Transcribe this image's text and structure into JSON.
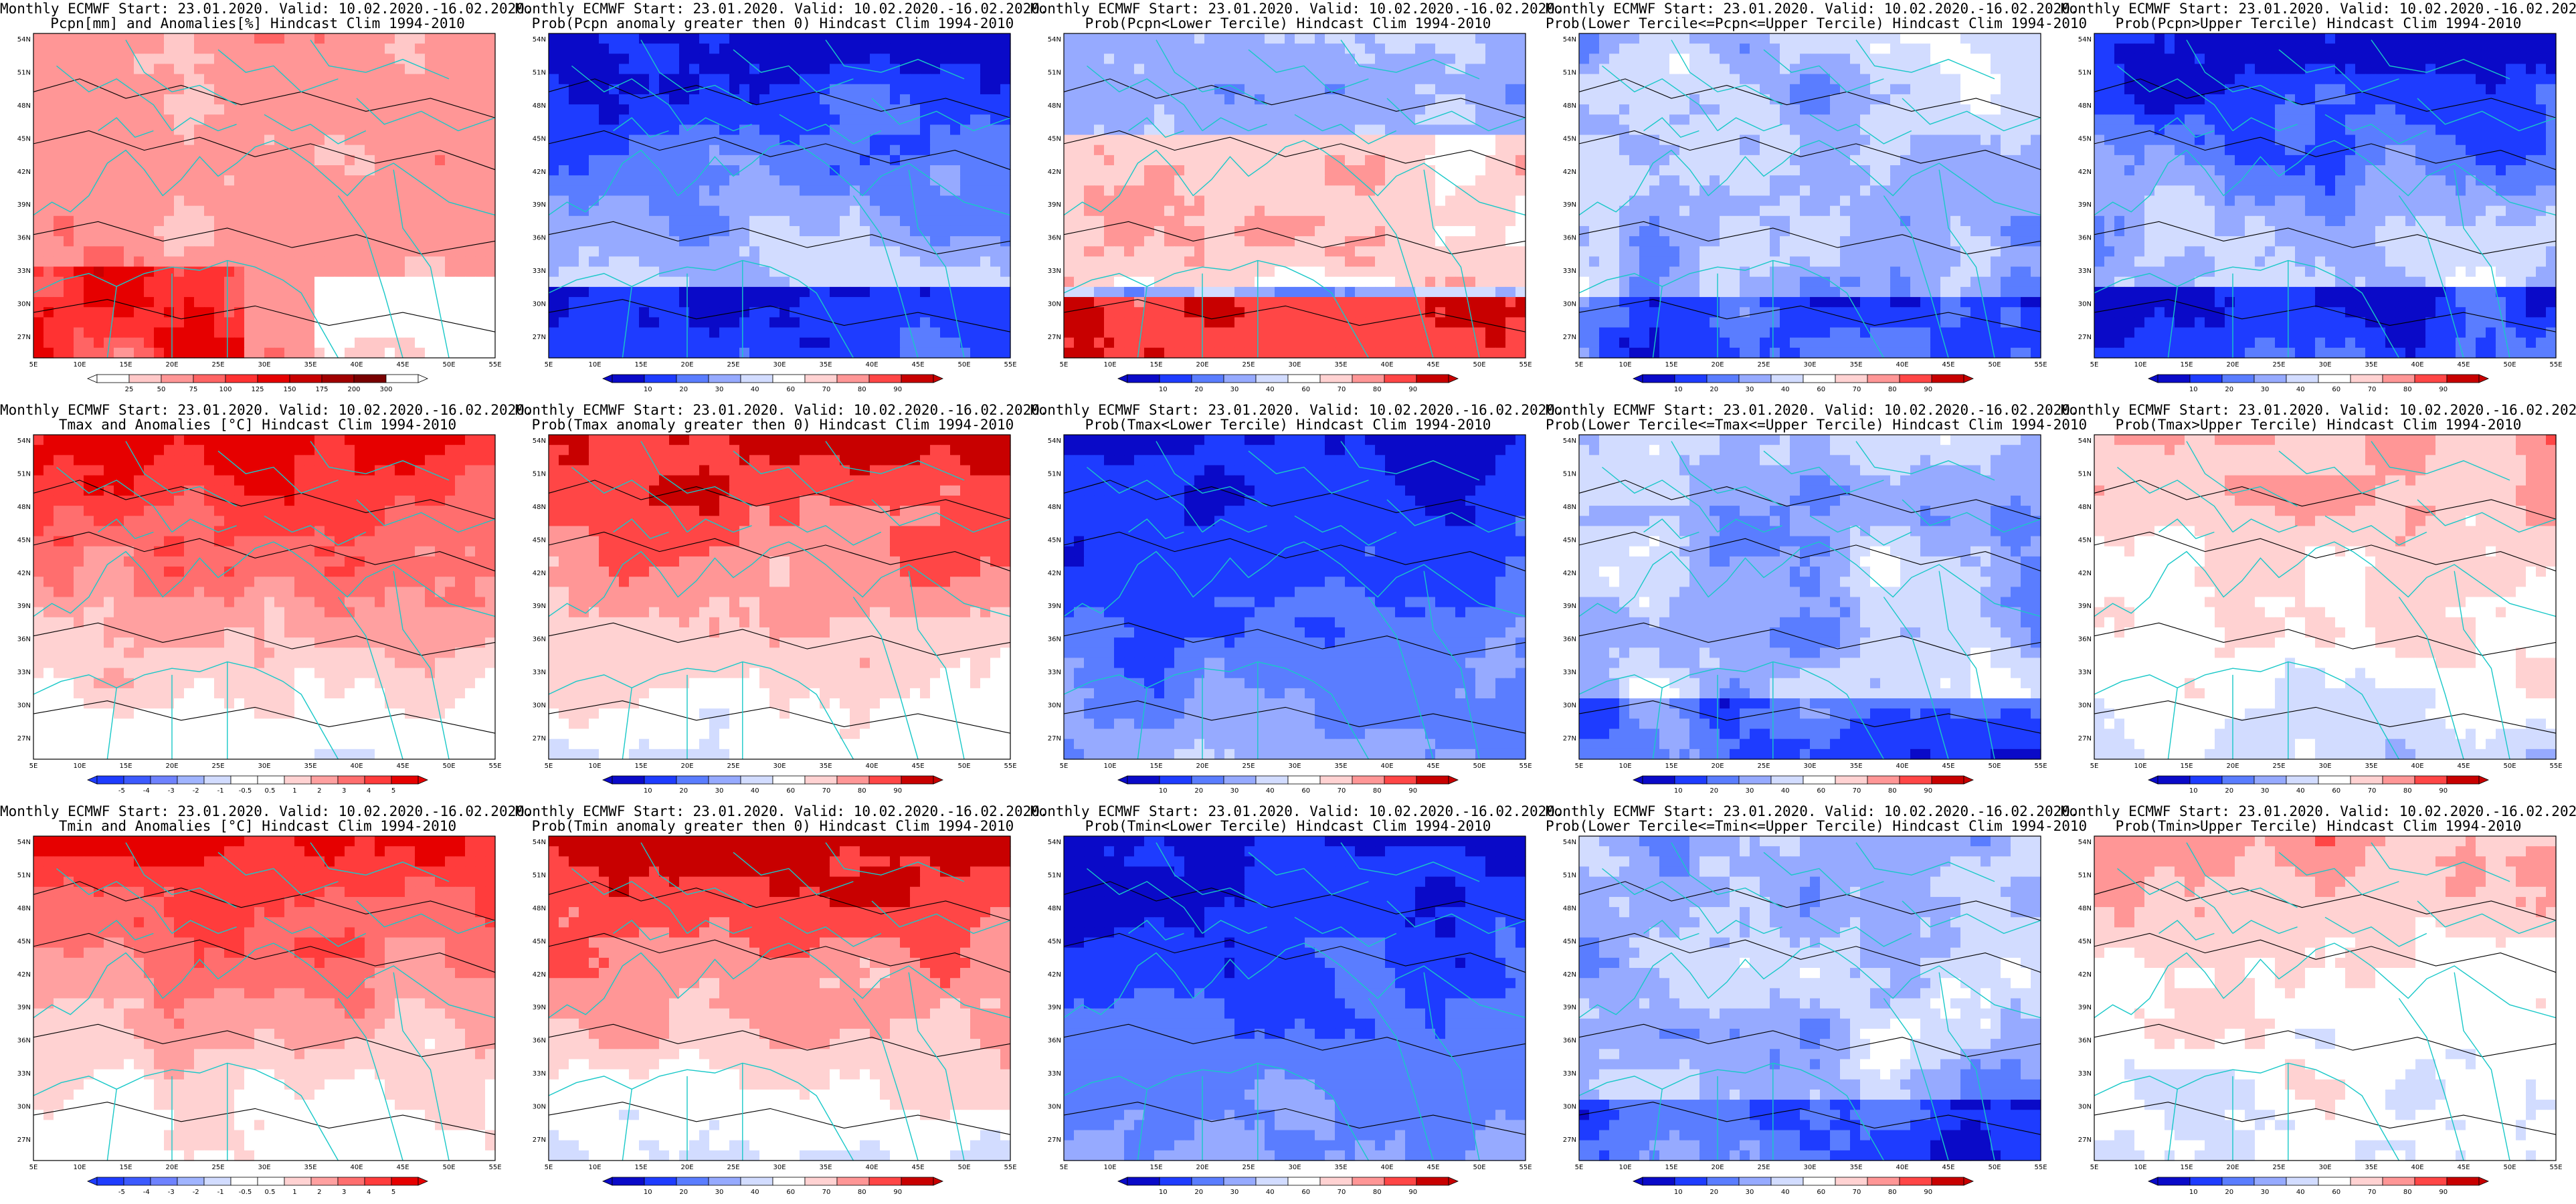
{
  "common": {
    "header": "Monthly ECMWF Start: 23.01.2020. Valid: 10.02.2020.-16.02.2020.",
    "lon_labels": [
      "5E",
      "10E",
      "15E",
      "20E",
      "25E",
      "30E",
      "35E",
      "40E",
      "45E",
      "50E",
      "55E"
    ],
    "lat_labels": [
      "54N",
      "51N",
      "48N",
      "45N",
      "42N",
      "39N",
      "36N",
      "33N",
      "30N",
      "27N"
    ]
  },
  "palettes": {
    "anom_pcpn": [
      "#ffffff",
      "#ffc8c8",
      "#ff9696",
      "#ff6464",
      "#ff3232",
      "#e60000",
      "#c80000",
      "#a00000",
      "#780000",
      "#ffffff"
    ],
    "anom_temp": [
      "#1e3cff",
      "#3c5aff",
      "#6e82ff",
      "#a0b4ff",
      "#d2dcff",
      "#ffffff",
      "#ffffff",
      "#ffd2d2",
      "#ffa0a0",
      "#ff6e6e",
      "#ff3c3c",
      "#e60000"
    ],
    "prob_blue_red": [
      "#0a0ac8",
      "#1e3cff",
      "#5a7dff",
      "#96aaff",
      "#d2dcff",
      "#ffffff",
      "#ffd2d2",
      "#ff9696",
      "#ff4646",
      "#c80000"
    ]
  },
  "panels": [
    {
      "row": 0,
      "col": 0,
      "subtitle": "Pcpn[mm] and Anomalies[%] Hindcast Clim 1994-2010",
      "palette": "anom_pcpn",
      "scheme": "pcpn_anom",
      "colorbar": [
        "25",
        "50",
        "75",
        "100",
        "125",
        "150",
        "175",
        "200",
        "300"
      ]
    },
    {
      "row": 0,
      "col": 1,
      "subtitle": "Prob(Pcpn anomaly greater then 0) Hindcast Clim 1994-2010",
      "palette": "prob_blue_red",
      "scheme": "blue_n",
      "colorbar": [
        "10",
        "20",
        "30",
        "40",
        "60",
        "70",
        "80",
        "90"
      ]
    },
    {
      "row": 0,
      "col": 2,
      "subtitle": "Prob(Pcpn<Lower Tercile) Hindcast Clim 1994-2010",
      "palette": "prob_blue_red",
      "scheme": "blue_n_red_s",
      "colorbar": [
        "10",
        "20",
        "30",
        "40",
        "60",
        "70",
        "80",
        "90"
      ]
    },
    {
      "row": 0,
      "col": 3,
      "subtitle": "Prob(Lower Tercile<=Pcpn<=Upper Tercile) Hindcast Clim 1994-2010",
      "palette": "prob_blue_red",
      "scheme": "blue_mixed",
      "colorbar": [
        "10",
        "20",
        "30",
        "40",
        "60",
        "70",
        "80",
        "90"
      ]
    },
    {
      "row": 0,
      "col": 4,
      "subtitle": "Prob(Pcpn>Upper Tercile) Hindcast Clim 1994-2010",
      "palette": "prob_blue_red",
      "scheme": "blue_n",
      "colorbar": [
        "10",
        "20",
        "30",
        "40",
        "60",
        "70",
        "80",
        "90"
      ]
    },
    {
      "row": 1,
      "col": 0,
      "subtitle": "Tmax and Anomalies [°C] Hindcast Clim 1994-2010",
      "palette": "anom_temp",
      "scheme": "red_n",
      "colorbar": [
        "-5",
        "-4",
        "-3",
        "-2",
        "-1",
        "-0.5",
        "0.5",
        "1",
        "2",
        "3",
        "4",
        "5"
      ]
    },
    {
      "row": 1,
      "col": 1,
      "subtitle": "Prob(Tmax anomaly greater then 0) Hindcast Clim 1994-2010",
      "palette": "prob_blue_red",
      "scheme": "red_n",
      "colorbar": [
        "10",
        "20",
        "30",
        "40",
        "60",
        "70",
        "80",
        "90"
      ]
    },
    {
      "row": 1,
      "col": 2,
      "subtitle": "Prob(Tmax<Lower Tercile) Hindcast Clim 1994-2010",
      "palette": "prob_blue_red",
      "scheme": "deep_blue",
      "colorbar": [
        "10",
        "20",
        "30",
        "40",
        "60",
        "70",
        "80",
        "90"
      ]
    },
    {
      "row": 1,
      "col": 3,
      "subtitle": "Prob(Lower Tercile<=Tmax<=Upper Tercile) Hindcast Clim 1994-2010",
      "palette": "prob_blue_red",
      "scheme": "blue_mixed",
      "colorbar": [
        "10",
        "20",
        "30",
        "40",
        "60",
        "70",
        "80",
        "90"
      ]
    },
    {
      "row": 1,
      "col": 4,
      "subtitle": "Prob(Tmax>Upper Tercile) Hindcast Clim 1994-2010",
      "palette": "prob_blue_red",
      "scheme": "pale_red",
      "colorbar": [
        "10",
        "20",
        "30",
        "40",
        "60",
        "70",
        "80",
        "90"
      ]
    },
    {
      "row": 2,
      "col": 0,
      "subtitle": "Tmin and Anomalies [°C] Hindcast Clim 1994-2010",
      "palette": "anom_temp",
      "scheme": "red_n",
      "colorbar": [
        "-5",
        "-4",
        "-3",
        "-2",
        "-1",
        "-0.5",
        "0.5",
        "1",
        "2",
        "3",
        "4",
        "5"
      ]
    },
    {
      "row": 2,
      "col": 1,
      "subtitle": "Prob(Tmin anomaly greater then 0) Hindcast Clim 1994-2010",
      "palette": "prob_blue_red",
      "scheme": "red_n",
      "colorbar": [
        "10",
        "20",
        "30",
        "40",
        "60",
        "70",
        "80",
        "90"
      ]
    },
    {
      "row": 2,
      "col": 2,
      "subtitle": "Prob(Tmin<Lower Tercile) Hindcast Clim 1994-2010",
      "palette": "prob_blue_red",
      "scheme": "deep_blue",
      "colorbar": [
        "10",
        "20",
        "30",
        "40",
        "60",
        "70",
        "80",
        "90"
      ]
    },
    {
      "row": 2,
      "col": 3,
      "subtitle": "Prob(Lower Tercile<=Tmin<=Upper Tercile) Hindcast Clim 1994-2010",
      "palette": "prob_blue_red",
      "scheme": "blue_mixed",
      "colorbar": [
        "10",
        "20",
        "30",
        "40",
        "60",
        "70",
        "80",
        "90"
      ]
    },
    {
      "row": 2,
      "col": 4,
      "subtitle": "Prob(Tmin>Upper Tercile) Hindcast Clim 1994-2010",
      "palette": "prob_blue_red",
      "scheme": "pale_red",
      "colorbar": [
        "10",
        "20",
        "30",
        "40",
        "60",
        "70",
        "80",
        "90"
      ]
    }
  ]
}
